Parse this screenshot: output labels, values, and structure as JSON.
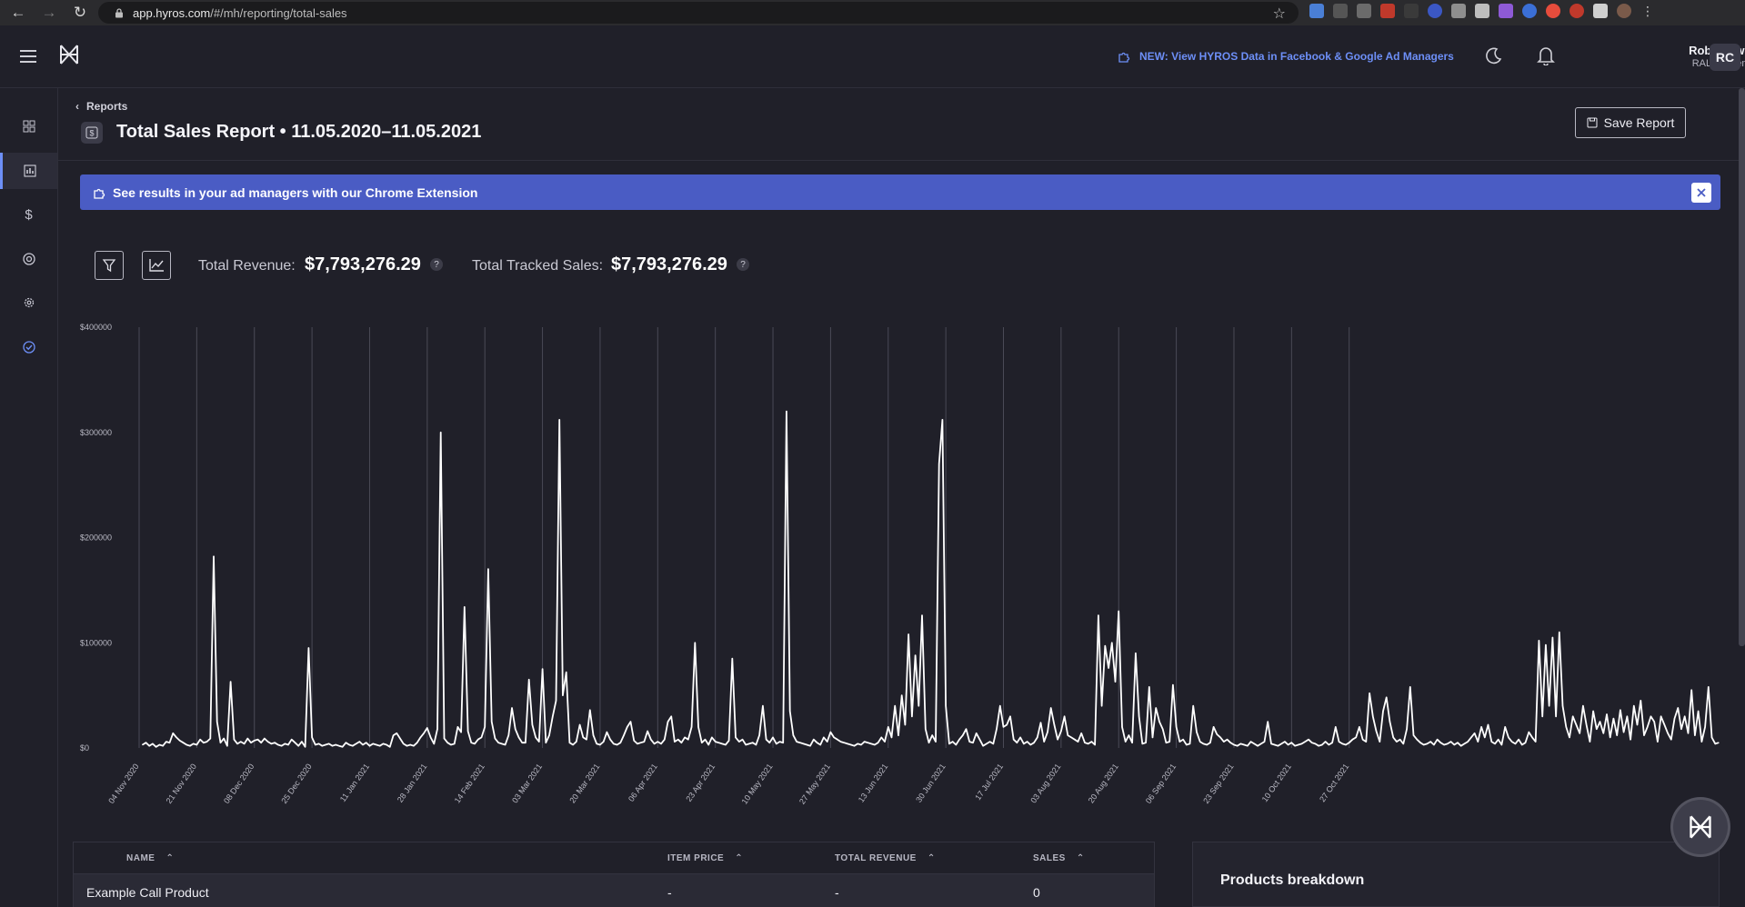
{
  "browser": {
    "url_host": "app.hyros.com",
    "url_path": "/#/mh/reporting/total-sales"
  },
  "header": {
    "announcement": "NEW: View HYROS Data in Facebook & Google Ad Managers",
    "user_name": "Rob Corwin",
    "user_org": "RAL Academy",
    "avatar_initials": "RC"
  },
  "sidebar": {
    "items": [
      {
        "icon": "grid-icon"
      },
      {
        "icon": "bar-chart-icon",
        "active": true
      },
      {
        "icon": "dollar-icon"
      },
      {
        "icon": "target-icon"
      },
      {
        "icon": "gear-icon"
      },
      {
        "icon": "check-circle-icon"
      }
    ]
  },
  "page": {
    "breadcrumb": "Reports",
    "title": "Total Sales Report • 11.05.2020–11.05.2021",
    "save_button": "Save Report"
  },
  "banner": {
    "text": "See results in your ad managers with our Chrome Extension"
  },
  "metrics": {
    "revenue_label": "Total Revenue:",
    "revenue_value": "$7,793,276.29",
    "tracked_label": "Total Tracked Sales:",
    "tracked_value": "$7,793,276.29",
    "help_glyph": "?"
  },
  "chart_data": {
    "type": "line",
    "x_tick_labels": [
      "04 Nov 2020",
      "21 Nov 2020",
      "08 Dec 2020",
      "25 Dec 2020",
      "11 Jan 2021",
      "28 Jan 2021",
      "14 Feb 2021",
      "03 Mar 2021",
      "20 Mar 2021",
      "06 Apr 2021",
      "23 Apr 2021",
      "10 May 2021",
      "27 May 2021",
      "13 Jun 2021",
      "30 Jun 2021",
      "17 Jul 2021",
      "03 Aug 2021",
      "20 Aug 2021",
      "06 Sep 2021",
      "23 Sep 2021",
      "10 Oct 2021",
      "27 Oct 2021"
    ],
    "y_tick_labels": [
      "$0",
      "$100000",
      "$200000",
      "$300000",
      "$400000"
    ],
    "ylim": [
      0,
      400000
    ],
    "grid": "vertical",
    "series": [
      {
        "color": "#ffffff",
        "x_start": "2020-11-05",
        "x_step_days": 1,
        "values": [
          3000,
          5000,
          2000,
          4000,
          1000,
          3000,
          2000,
          6000,
          5000,
          14000,
          10000,
          7000,
          5000,
          3000,
          2000,
          4000,
          3000,
          8000,
          5000,
          6000,
          9000,
          182000,
          25000,
          5000,
          9000,
          2000,
          63000,
          8000,
          4000,
          6000,
          4000,
          9000,
          5000,
          7000,
          8000,
          5000,
          9000,
          6000,
          4000,
          5000,
          3000,
          2000,
          4000,
          3000,
          8000,
          5000,
          2000,
          6000,
          1000,
          95000,
          10000,
          3000,
          4000,
          2000,
          3000,
          4000,
          2000,
          3000,
          2000,
          1000,
          5000,
          3000,
          2000,
          4000,
          6000,
          3000,
          5000,
          2000,
          4000,
          3000,
          2000,
          4000,
          3000,
          1000,
          12000,
          14000,
          9000,
          4000,
          2000,
          3000,
          2000,
          5000,
          10000,
          14000,
          19000,
          10000,
          4000,
          18000,
          300000,
          9000,
          5000,
          3000,
          4000,
          20000,
          15000,
          134000,
          16000,
          5000,
          4000,
          8000,
          10000,
          20000,
          170000,
          25000,
          9000,
          5000,
          4000,
          3000,
          12000,
          38000,
          18000,
          10000,
          5000,
          5000,
          65000,
          22000,
          10000,
          6000,
          75000,
          5000,
          12000,
          30000,
          45000,
          312000,
          50000,
          72000,
          5000,
          3000,
          6000,
          22000,
          10000,
          8000,
          36000,
          12000,
          4000,
          3000,
          6000,
          15000,
          8000,
          4000,
          3000,
          5000,
          12000,
          20000,
          25000,
          7000,
          4000,
          5000,
          6000,
          16000,
          8000,
          4000,
          6000,
          4000,
          8000,
          25000,
          30000,
          6000,
          8000,
          5000,
          10000,
          8000,
          20000,
          100000,
          20000,
          5000,
          8000,
          3000,
          10000,
          6000,
          5000,
          4000,
          3000,
          7000,
          85000,
          10000,
          6000,
          8000,
          3000,
          4000,
          5000,
          3000,
          12000,
          40000,
          8000,
          5000,
          10000,
          4000,
          6000,
          5000,
          320000,
          35000,
          12000,
          6000,
          5000,
          4000,
          3000,
          2000,
          8000,
          5000,
          3000,
          10000,
          6000,
          15000,
          10000,
          8000,
          6000,
          5000,
          4000,
          3000,
          2000,
          4000,
          3000,
          6000,
          5000,
          4000,
          3000,
          5000,
          10000,
          6000,
          20000,
          10000,
          40000,
          12000,
          50000,
          22000,
          108000,
          30000,
          88000,
          40000,
          126000,
          18000,
          5000,
          12000,
          6000,
          270000,
          312000,
          40000,
          4000,
          6000,
          3000,
          8000,
          12000,
          18000,
          6000,
          5000,
          14000,
          8000,
          2000,
          4000,
          6000,
          4000,
          18000,
          40000,
          20000,
          22000,
          30000,
          8000,
          5000,
          10000,
          4000,
          6000,
          3000,
          5000,
          10000,
          24000,
          6000,
          15000,
          38000,
          22000,
          8000,
          16000,
          30000,
          12000,
          10000,
          8000,
          6000,
          14000,
          5000,
          4000,
          6000,
          3000,
          126000,
          40000,
          97000,
          76000,
          100000,
          63000,
          130000,
          20000,
          6000,
          12000,
          5000,
          90000,
          30000,
          4000,
          5000,
          58000,
          10000,
          38000,
          25000,
          18000,
          5000,
          6000,
          60000,
          20000,
          6000,
          8000,
          3000,
          4000,
          40000,
          15000,
          6000,
          4000,
          3000,
          5000,
          20000,
          13000,
          10000,
          6000,
          8000,
          5000,
          3000,
          2000,
          4000,
          3000,
          2000,
          6000,
          4000,
          2000,
          4000,
          6000,
          25000,
          4000,
          3000,
          2000,
          4000,
          6000,
          3000,
          5000,
          2000,
          3000,
          4000,
          6000,
          8000,
          5000,
          4000,
          2000,
          3000,
          6000,
          3000,
          5000,
          20000,
          6000,
          4000,
          3000,
          5000,
          8000,
          10000,
          20000,
          8000,
          6000,
          52000,
          30000,
          16000,
          6000,
          35000,
          48000,
          25000,
          10000,
          6000,
          8000,
          4000,
          18000,
          58000,
          12000,
          8000,
          5000,
          3000,
          4000,
          6000,
          3000,
          8000,
          5000,
          3000,
          4000,
          6000,
          3000,
          5000,
          2000,
          4000,
          6000,
          10000,
          14000,
          6000,
          20000,
          10000,
          22000,
          6000,
          4000,
          8000,
          3000,
          20000,
          10000,
          6000,
          4000,
          8000,
          3000,
          5000,
          15000,
          10000,
          6000,
          102000,
          30000,
          98000,
          40000,
          105000,
          30000,
          110000,
          40000,
          20000,
          10000,
          30000,
          22000,
          14000,
          40000,
          22000,
          6000,
          35000,
          18000,
          25000,
          14000,
          32000,
          10000,
          28000,
          12000,
          36000,
          15000,
          30000,
          8000,
          40000,
          22000,
          45000,
          12000,
          20000,
          30000,
          25000,
          6000,
          30000,
          22000,
          14000,
          8000,
          28000,
          38000,
          18000,
          30000,
          14000,
          55000,
          12000,
          35000,
          6000,
          20000,
          58000,
          10000,
          4000,
          5000
        ]
      }
    ]
  },
  "table": {
    "columns": [
      {
        "label": "NAME"
      },
      {
        "label": "ITEM PRICE"
      },
      {
        "label": "TOTAL REVENUE"
      },
      {
        "label": "SALES"
      }
    ],
    "rows": [
      {
        "name": "Example Call Product",
        "item_price": "-",
        "total_revenue": "-",
        "sales": "0"
      }
    ]
  },
  "breakdown": {
    "title": "Products breakdown"
  },
  "colors": {
    "accent": "#6d8ff7",
    "banner": "#4a5cc4",
    "background": "#202029"
  }
}
